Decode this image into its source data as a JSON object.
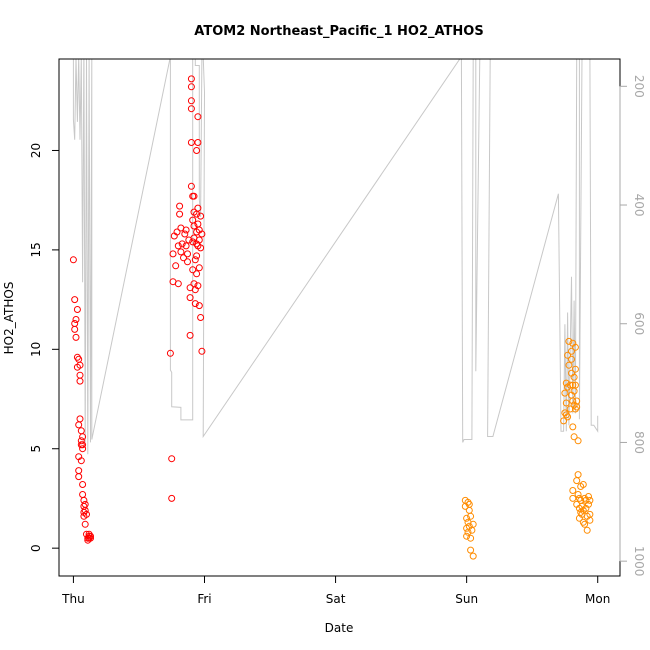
{
  "chart_data": {
    "type": "scatter",
    "title": "ATOM2 Northeast_Pacific_1 HO2_ATHOS",
    "xlabel": "Date",
    "ylabel": "HO2_ATHOS",
    "x_ticks": [
      "Thu",
      "Fri",
      "Sat",
      "Sun",
      "Mon"
    ],
    "y_ticks": [
      "0",
      "5",
      "10",
      "15",
      "20"
    ],
    "y2_ticks": [
      "200",
      "400",
      "600",
      "800",
      "1000"
    ],
    "xlim": [
      -0.11,
      4.17
    ],
    "ylim": [
      -1.4,
      24.6
    ],
    "y2lim": [
      1025,
      154
    ],
    "y2_reversed": true,
    "grid": false,
    "series": [
      {
        "color": "#ff0000",
        "points": [
          [
            0.0,
            14.5
          ],
          [
            0.01,
            12.5
          ],
          [
            0.01,
            11.3
          ],
          [
            0.01,
            11.0
          ],
          [
            0.02,
            11.5
          ],
          [
            0.02,
            10.6
          ],
          [
            0.03,
            12.0
          ],
          [
            0.03,
            9.6
          ],
          [
            0.03,
            9.1
          ],
          [
            0.04,
            9.5
          ],
          [
            0.04,
            6.2
          ],
          [
            0.04,
            4.6
          ],
          [
            0.04,
            3.9
          ],
          [
            0.04,
            3.6
          ],
          [
            0.05,
            8.7
          ],
          [
            0.05,
            8.4
          ],
          [
            0.05,
            9.2
          ],
          [
            0.05,
            6.5
          ],
          [
            0.06,
            5.9
          ],
          [
            0.06,
            5.4
          ],
          [
            0.06,
            5.2
          ],
          [
            0.06,
            4.4
          ],
          [
            0.07,
            5.6
          ],
          [
            0.07,
            5.2
          ],
          [
            0.07,
            3.2
          ],
          [
            0.07,
            5.0
          ],
          [
            0.07,
            2.7
          ],
          [
            0.08,
            2.4
          ],
          [
            0.08,
            2.1
          ],
          [
            0.08,
            1.8
          ],
          [
            0.08,
            1.6
          ],
          [
            0.09,
            2.2
          ],
          [
            0.09,
            1.9
          ],
          [
            0.09,
            1.2
          ],
          [
            0.1,
            1.7
          ],
          [
            0.1,
            0.7
          ],
          [
            0.11,
            0.5
          ],
          [
            0.11,
            0.4
          ],
          [
            0.12,
            0.6
          ],
          [
            0.12,
            0.5
          ],
          [
            0.12,
            0.7
          ],
          [
            0.13,
            0.6
          ],
          [
            0.13,
            0.5
          ],
          [
            0.74,
            9.8
          ],
          [
            0.75,
            2.5
          ],
          [
            0.75,
            4.5
          ],
          [
            0.76,
            13.4
          ],
          [
            0.76,
            14.8
          ],
          [
            0.77,
            15.7
          ],
          [
            0.78,
            14.2
          ],
          [
            0.79,
            15.9
          ],
          [
            0.8,
            15.2
          ],
          [
            0.8,
            13.3
          ],
          [
            0.81,
            16.8
          ],
          [
            0.81,
            17.2
          ],
          [
            0.82,
            16.1
          ],
          [
            0.82,
            14.9
          ],
          [
            0.83,
            15.3
          ],
          [
            0.84,
            14.6
          ],
          [
            0.85,
            15.8
          ],
          [
            0.86,
            16.0
          ],
          [
            0.86,
            15.2
          ],
          [
            0.87,
            14.4
          ],
          [
            0.87,
            14.8
          ],
          [
            0.88,
            15.5
          ],
          [
            0.89,
            13.1
          ],
          [
            0.89,
            12.6
          ],
          [
            0.89,
            10.7
          ],
          [
            0.9,
            23.2
          ],
          [
            0.9,
            23.6
          ],
          [
            0.9,
            22.5
          ],
          [
            0.9,
            22.1
          ],
          [
            0.9,
            20.4
          ],
          [
            0.9,
            18.2
          ],
          [
            0.91,
            17.7
          ],
          [
            0.91,
            16.5
          ],
          [
            0.91,
            15.4
          ],
          [
            0.91,
            14.0
          ],
          [
            0.92,
            16.9
          ],
          [
            0.92,
            17.7
          ],
          [
            0.92,
            16.2
          ],
          [
            0.92,
            15.6
          ],
          [
            0.92,
            13.3
          ],
          [
            0.93,
            14.5
          ],
          [
            0.93,
            13.0
          ],
          [
            0.93,
            12.3
          ],
          [
            0.94,
            20.0
          ],
          [
            0.94,
            16.8
          ],
          [
            0.94,
            15.9
          ],
          [
            0.94,
            15.3
          ],
          [
            0.94,
            14.7
          ],
          [
            0.94,
            13.8
          ],
          [
            0.95,
            21.7
          ],
          [
            0.95,
            20.4
          ],
          [
            0.95,
            17.1
          ],
          [
            0.95,
            16.3
          ],
          [
            0.95,
            15.2
          ],
          [
            0.95,
            13.2
          ],
          [
            0.96,
            16.0
          ],
          [
            0.96,
            15.5
          ],
          [
            0.96,
            14.1
          ],
          [
            0.96,
            12.2
          ],
          [
            0.97,
            16.7
          ],
          [
            0.97,
            15.1
          ],
          [
            0.97,
            11.6
          ],
          [
            0.98,
            15.8
          ],
          [
            0.98,
            9.9
          ]
        ]
      },
      {
        "color": "#ff8c00",
        "points": [
          [
            2.99,
            2.4
          ],
          [
            2.99,
            2.1
          ],
          [
            3.0,
            1.5
          ],
          [
            3.0,
            1.0
          ],
          [
            3.0,
            0.6
          ],
          [
            3.01,
            2.3
          ],
          [
            3.01,
            1.3
          ],
          [
            3.01,
            0.8
          ],
          [
            3.02,
            2.2
          ],
          [
            3.02,
            1.9
          ],
          [
            3.02,
            1.1
          ],
          [
            3.03,
            1.6
          ],
          [
            3.03,
            0.5
          ],
          [
            3.03,
            -0.1
          ],
          [
            3.04,
            0.9
          ],
          [
            3.05,
            1.2
          ],
          [
            3.05,
            -0.4
          ],
          [
            3.74,
            6.4
          ],
          [
            3.75,
            7.8
          ],
          [
            3.75,
            6.8
          ],
          [
            3.76,
            8.3
          ],
          [
            3.76,
            7.3
          ],
          [
            3.76,
            6.7
          ],
          [
            3.77,
            9.7
          ],
          [
            3.77,
            8.1
          ],
          [
            3.77,
            6.6
          ],
          [
            3.78,
            10.4
          ],
          [
            3.78,
            9.2
          ],
          [
            3.79,
            8.2
          ],
          [
            3.79,
            7.0
          ],
          [
            3.8,
            9.9
          ],
          [
            3.8,
            9.5
          ],
          [
            3.8,
            8.8
          ],
          [
            3.8,
            7.7
          ],
          [
            3.81,
            10.3
          ],
          [
            3.81,
            8.2
          ],
          [
            3.81,
            7.4
          ],
          [
            3.81,
            6.1
          ],
          [
            3.81,
            2.9
          ],
          [
            3.81,
            2.5
          ],
          [
            3.82,
            8.6
          ],
          [
            3.82,
            7.9
          ],
          [
            3.82,
            7.2
          ],
          [
            3.82,
            5.6
          ],
          [
            3.83,
            10.1
          ],
          [
            3.83,
            9.0
          ],
          [
            3.83,
            8.2
          ],
          [
            3.83,
            7.0
          ],
          [
            3.84,
            7.4
          ],
          [
            3.84,
            7.1
          ],
          [
            3.84,
            3.4
          ],
          [
            3.84,
            2.2
          ],
          [
            3.85,
            5.4
          ],
          [
            3.85,
            3.7
          ],
          [
            3.85,
            2.7
          ],
          [
            3.86,
            2.5
          ],
          [
            3.86,
            2.0
          ],
          [
            3.86,
            1.5
          ],
          [
            3.87,
            3.1
          ],
          [
            3.87,
            2.4
          ],
          [
            3.87,
            1.8
          ],
          [
            3.88,
            2.1
          ],
          [
            3.88,
            1.7
          ],
          [
            3.89,
            3.2
          ],
          [
            3.89,
            1.9
          ],
          [
            3.89,
            1.3
          ],
          [
            3.9,
            2.5
          ],
          [
            3.9,
            1.2
          ],
          [
            3.91,
            2.4
          ],
          [
            3.91,
            2.0
          ],
          [
            3.92,
            1.6
          ],
          [
            3.92,
            0.9
          ],
          [
            3.93,
            2.2
          ],
          [
            3.93,
            2.6
          ],
          [
            3.94,
            1.7
          ],
          [
            3.94,
            1.4
          ],
          [
            3.94,
            2.4
          ]
        ]
      }
    ],
    "secondary_line": {
      "color": "#c8c8c8",
      "points": [
        [
          0.0,
          60
        ],
        [
          0.0,
          256
        ],
        [
          0.01,
          290
        ],
        [
          0.02,
          150
        ],
        [
          0.03,
          260
        ],
        [
          0.04,
          150
        ],
        [
          0.05,
          290
        ],
        [
          0.06,
          150
        ],
        [
          0.07,
          530
        ],
        [
          0.08,
          130
        ],
        [
          0.09,
          800
        ],
        [
          0.1,
          150
        ],
        [
          0.11,
          820
        ],
        [
          0.12,
          150
        ],
        [
          0.13,
          800
        ],
        [
          0.14,
          150
        ],
        [
          0.14,
          795
        ],
        [
          0.74,
          150
        ],
        [
          0.74,
          400
        ],
        [
          0.74,
          678
        ],
        [
          0.75,
          682
        ],
        [
          0.75,
          740
        ],
        [
          0.82,
          741
        ],
        [
          0.82,
          762
        ],
        [
          0.91,
          762
        ],
        [
          0.91,
          150
        ],
        [
          0.93,
          150
        ],
        [
          0.93,
          165
        ],
        [
          0.96,
          165
        ],
        [
          0.96,
          390
        ],
        [
          0.97,
          420
        ],
        [
          0.98,
          150
        ],
        [
          0.99,
          150
        ],
        [
          1.0,
          210
        ],
        [
          0.99,
          790
        ],
        [
          2.96,
          150
        ],
        [
          2.97,
          800
        ],
        [
          2.98,
          795
        ],
        [
          3.04,
          795
        ],
        [
          3.05,
          150
        ],
        [
          3.06,
          150
        ],
        [
          3.07,
          150
        ],
        [
          3.07,
          680
        ],
        [
          3.1,
          150
        ],
        [
          3.11,
          150
        ],
        [
          3.14,
          150
        ],
        [
          3.15,
          150
        ],
        [
          3.18,
          150
        ],
        [
          3.16,
          790
        ],
        [
          3.2,
          790
        ],
        [
          3.7,
          381
        ],
        [
          3.72,
          781
        ],
        [
          3.74,
          781
        ],
        [
          3.75,
          601
        ],
        [
          3.76,
          781
        ],
        [
          3.77,
          581
        ],
        [
          3.78,
          771
        ],
        [
          3.8,
          521
        ],
        [
          3.81,
          751
        ],
        [
          3.82,
          561
        ],
        [
          3.83,
          751
        ],
        [
          3.84,
          150
        ],
        [
          3.86,
          150
        ],
        [
          3.86,
          761
        ],
        [
          3.88,
          150
        ],
        [
          3.9,
          150
        ],
        [
          3.91,
          150
        ],
        [
          3.93,
          150
        ],
        [
          3.94,
          150
        ],
        [
          3.95,
          771
        ],
        [
          3.97,
          771
        ],
        [
          4.0,
          781
        ],
        [
          4.0,
          755
        ],
        [
          4.0,
          760
        ]
      ]
    }
  }
}
